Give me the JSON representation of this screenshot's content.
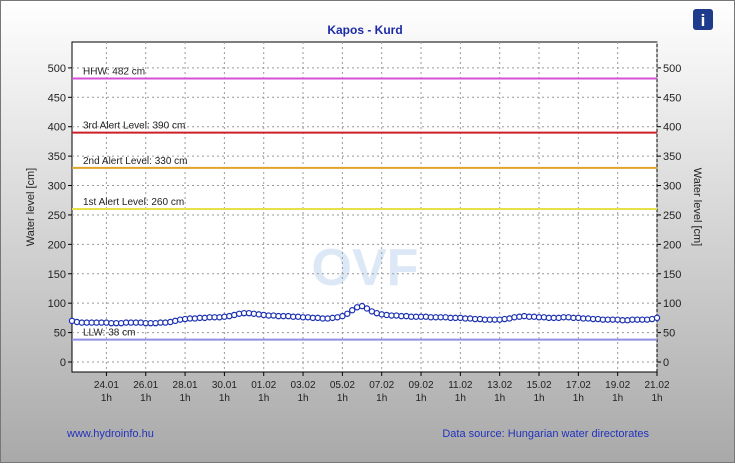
{
  "chart_data": {
    "type": "line",
    "title": "Kapos - Kurd",
    "y_label": "Water level [cm]",
    "watermark": "OVF",
    "footer_left": "www.hydroinfo.hu",
    "footer_right": "Data source: Hungarian water directorates",
    "ylim": [
      -17,
      544
    ],
    "yticks": [
      0,
      50,
      100,
      150,
      200,
      250,
      300,
      350,
      400,
      450,
      500
    ],
    "grid": true,
    "color": "#1a2fb0",
    "categories": [
      null,
      null,
      null,
      null,
      null,
      null,
      null,
      [
        "24.01",
        "1h"
      ],
      null,
      null,
      null,
      null,
      null,
      null,
      null,
      [
        "26.01",
        "1h"
      ],
      null,
      null,
      null,
      null,
      null,
      null,
      null,
      [
        "28.01",
        "1h"
      ],
      null,
      null,
      null,
      null,
      null,
      null,
      null,
      [
        "30.01",
        "1h"
      ],
      null,
      null,
      null,
      null,
      null,
      null,
      null,
      [
        "01.02",
        "1h"
      ],
      null,
      null,
      null,
      null,
      null,
      null,
      null,
      [
        "03.02",
        "1h"
      ],
      null,
      null,
      null,
      null,
      null,
      null,
      null,
      [
        "05.02",
        "1h"
      ],
      null,
      null,
      null,
      null,
      null,
      null,
      null,
      [
        "07.02",
        "1h"
      ],
      null,
      null,
      null,
      null,
      null,
      null,
      null,
      [
        "09.02",
        "1h"
      ],
      null,
      null,
      null,
      null,
      null,
      null,
      null,
      [
        "11.02",
        "1h"
      ],
      null,
      null,
      null,
      null,
      null,
      null,
      null,
      [
        "13.02",
        "1h"
      ],
      null,
      null,
      null,
      null,
      null,
      null,
      null,
      [
        "15.02",
        "1h"
      ],
      null,
      null,
      null,
      null,
      null,
      null,
      null,
      [
        "17.02",
        "1h"
      ],
      null,
      null,
      null,
      null,
      null,
      null,
      null,
      [
        "19.02",
        "1h"
      ],
      null,
      null,
      null,
      null,
      null,
      null,
      null,
      [
        "21.02",
        "1h"
      ]
    ],
    "values": [
      70,
      68,
      67,
      67,
      67,
      67,
      67,
      67,
      66,
      66,
      66,
      67,
      67,
      67,
      67,
      66,
      66,
      66,
      67,
      67,
      68,
      70,
      72,
      73,
      74,
      74,
      75,
      75,
      76,
      76,
      76,
      77,
      78,
      80,
      82,
      83,
      83,
      82,
      81,
      80,
      79,
      79,
      78,
      78,
      78,
      77,
      77,
      76,
      76,
      75,
      75,
      74,
      74,
      75,
      76,
      78,
      82,
      88,
      93,
      95,
      91,
      86,
      83,
      81,
      80,
      79,
      79,
      78,
      78,
      77,
      77,
      77,
      77,
      76,
      76,
      76,
      76,
      75,
      75,
      75,
      74,
      74,
      73,
      73,
      72,
      72,
      72,
      72,
      73,
      74,
      76,
      77,
      78,
      77,
      77,
      76,
      76,
      75,
      75,
      75,
      76,
      76,
      75,
      75,
      74,
      74,
      73,
      73,
      72,
      72,
      72,
      72,
      71,
      71,
      72,
      72,
      72,
      72,
      73,
      75
    ],
    "thresholds": [
      {
        "label": "HHW: 482 cm",
        "value": 482,
        "color": "#d64fd6"
      },
      {
        "label": "3rd Alert Level: 390 cm",
        "value": 390,
        "color": "#cc1f2a"
      },
      {
        "label": "2nd Alert Level: 330 cm",
        "value": 330,
        "color": "#e0a52a"
      },
      {
        "label": "1st Alert Level: 260 cm",
        "value": 260,
        "color": "#e6e04a"
      },
      {
        "label": "LLW: 38 cm",
        "value": 38,
        "color": "#8f8fe6"
      }
    ]
  }
}
